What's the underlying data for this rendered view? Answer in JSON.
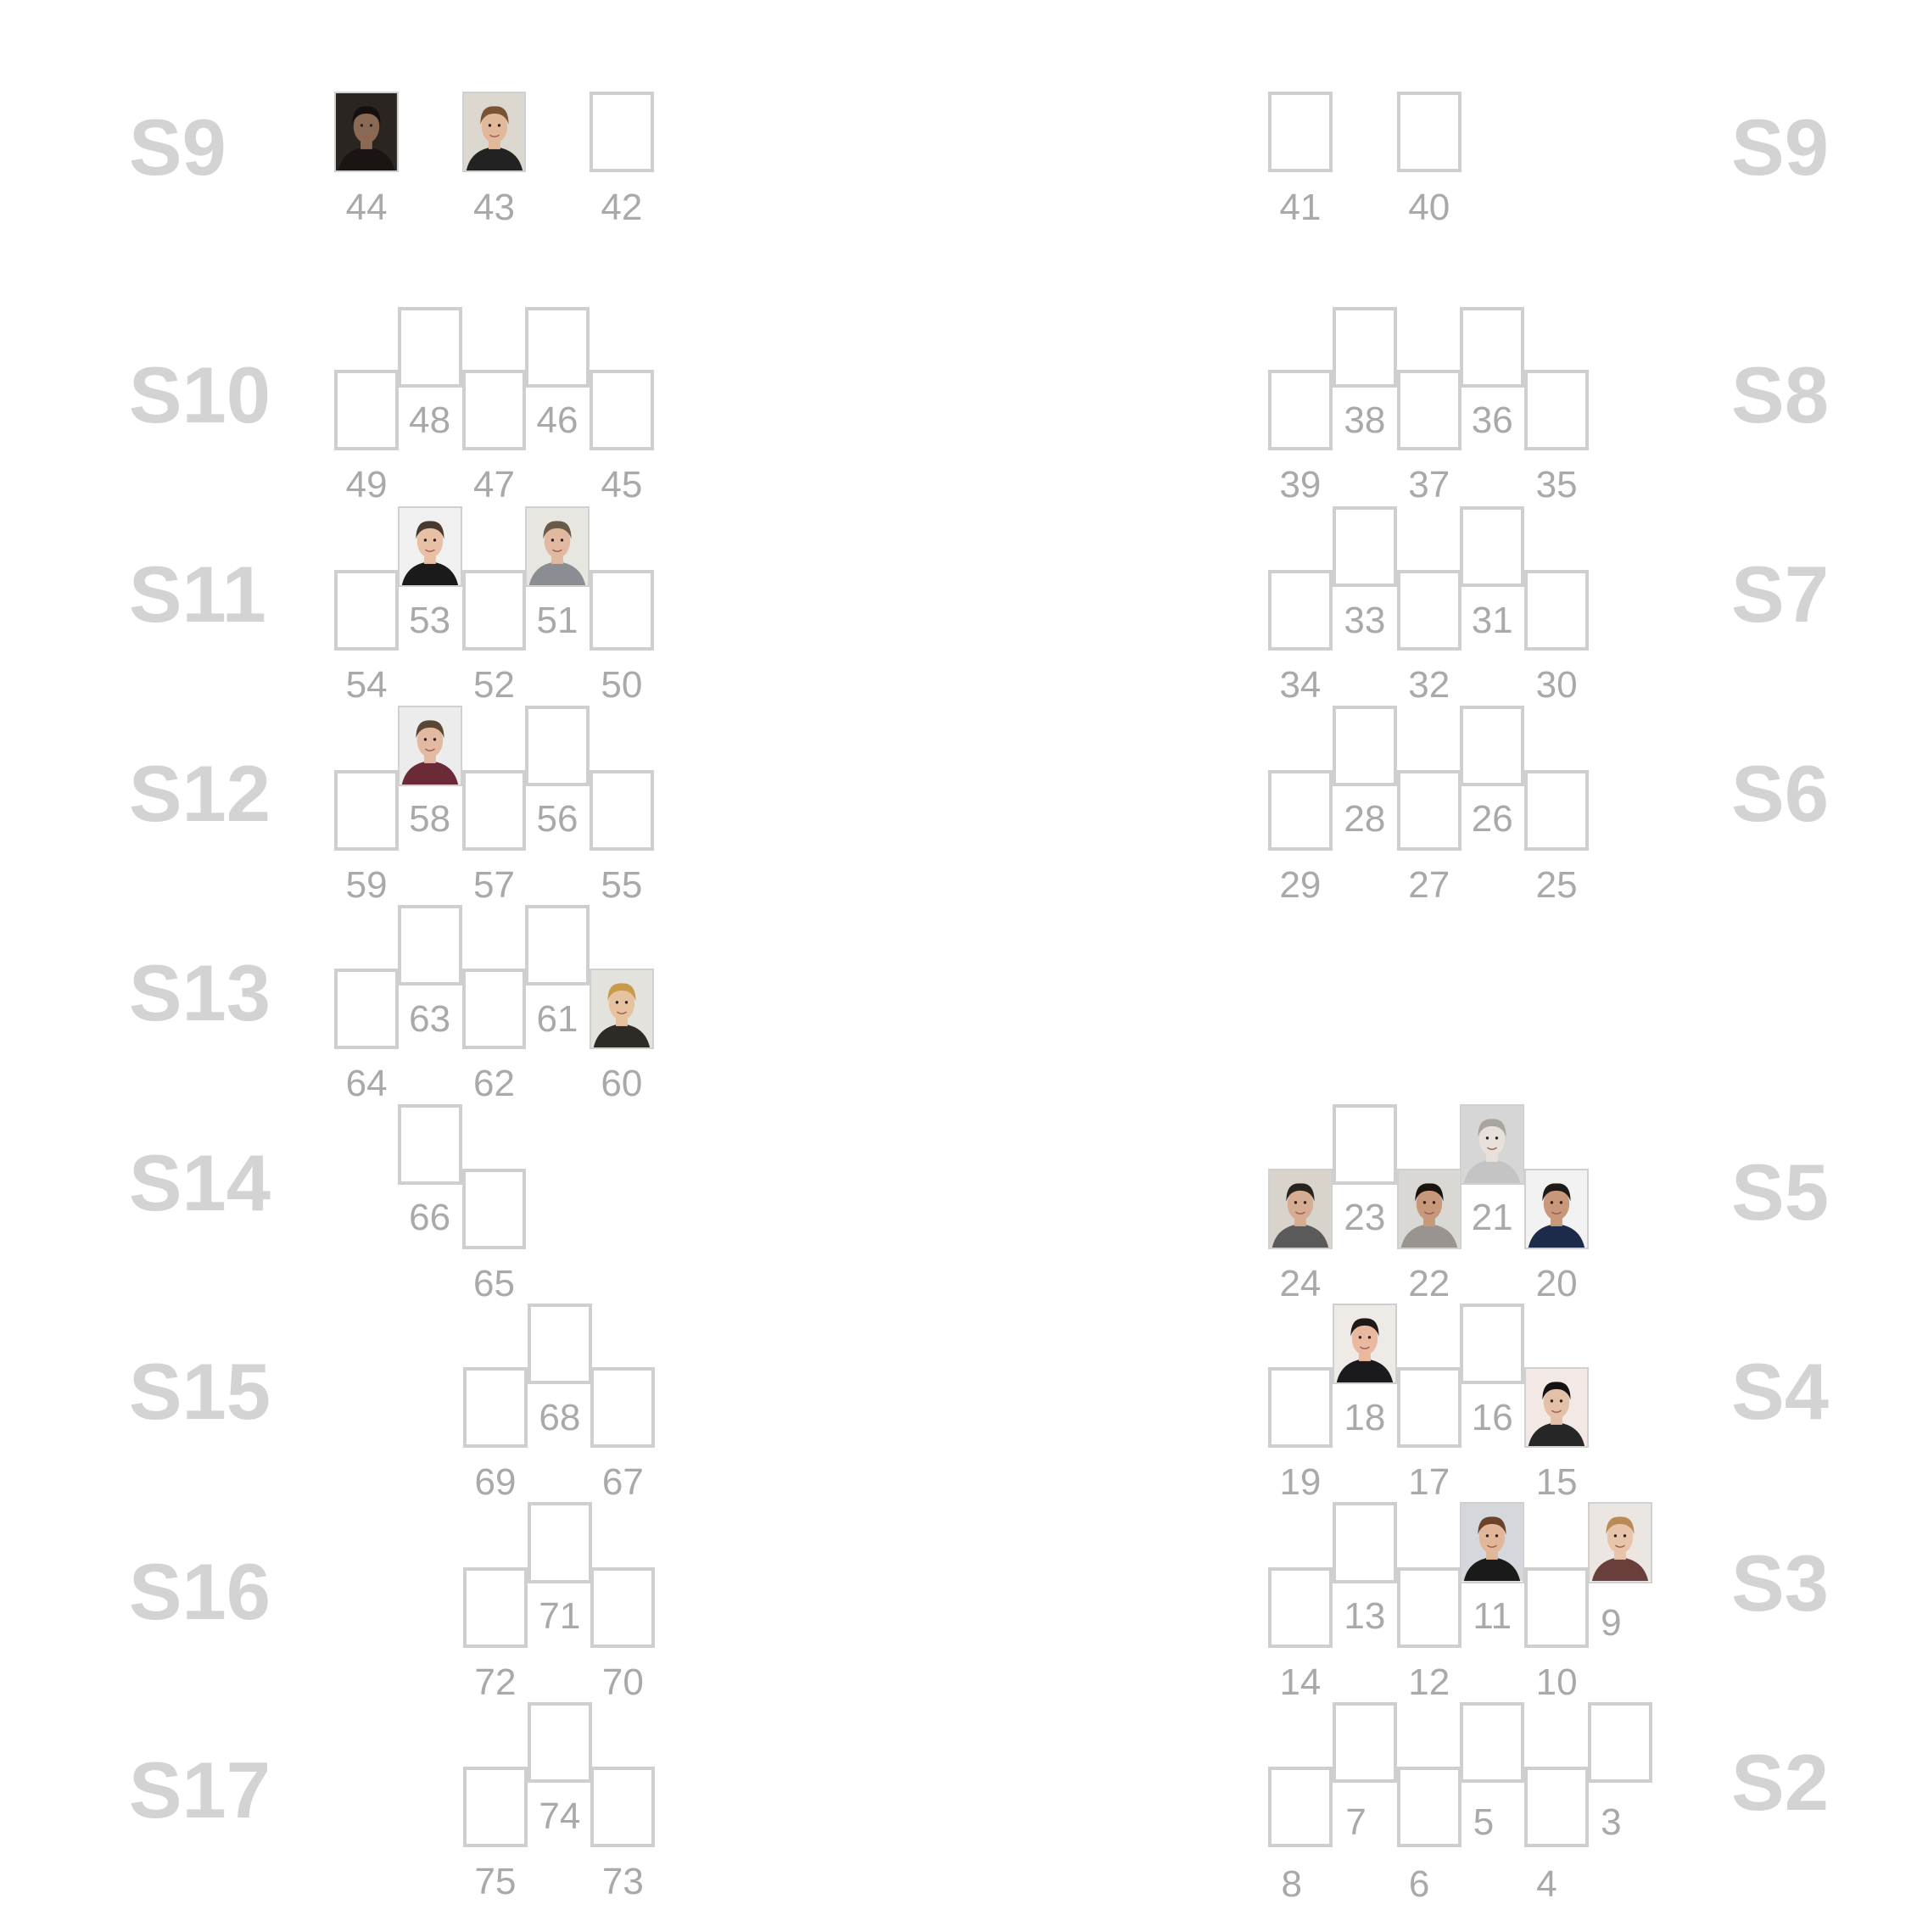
{
  "colors": {
    "label": "#d3d3d3",
    "seat_border": "#cfcfcf",
    "number": "#a9a9a9",
    "background": "#ffffff"
  },
  "rows": [
    {
      "label": "S9",
      "sides": [
        "left",
        "right"
      ]
    },
    {
      "label": "S10"
    },
    {
      "label": "S11"
    },
    {
      "label": "S12"
    },
    {
      "label": "S13"
    },
    {
      "label": "S14"
    },
    {
      "label": "S15"
    },
    {
      "label": "S16"
    },
    {
      "label": "S17"
    },
    {
      "label": "S8"
    },
    {
      "label": "S7"
    },
    {
      "label": "S6"
    },
    {
      "label": "S5"
    },
    {
      "label": "S4"
    },
    {
      "label": "S3"
    },
    {
      "label": "S2"
    }
  ],
  "seats": [
    {
      "no": "44",
      "occupied": true,
      "photo": "dark-portrait"
    },
    {
      "no": "43",
      "occupied": true,
      "photo": "smiling-man"
    },
    {
      "no": "42",
      "occupied": false
    },
    {
      "no": "41",
      "occupied": false
    },
    {
      "no": "40",
      "occupied": false
    },
    {
      "no": "49"
    },
    {
      "no": "48"
    },
    {
      "no": "47"
    },
    {
      "no": "46"
    },
    {
      "no": "45"
    },
    {
      "no": "39"
    },
    {
      "no": "38"
    },
    {
      "no": "37"
    },
    {
      "no": "36"
    },
    {
      "no": "35"
    },
    {
      "no": "54"
    },
    {
      "no": "53",
      "occupied": true,
      "photo": "young-man"
    },
    {
      "no": "52"
    },
    {
      "no": "51",
      "occupied": true,
      "photo": "man-grey-shirt"
    },
    {
      "no": "50"
    },
    {
      "no": "34"
    },
    {
      "no": "33"
    },
    {
      "no": "32"
    },
    {
      "no": "31"
    },
    {
      "no": "30"
    },
    {
      "no": "59"
    },
    {
      "no": "58",
      "occupied": true,
      "photo": "man-maroon-shirt"
    },
    {
      "no": "57"
    },
    {
      "no": "56"
    },
    {
      "no": "55"
    },
    {
      "no": "29"
    },
    {
      "no": "28"
    },
    {
      "no": "27"
    },
    {
      "no": "26"
    },
    {
      "no": "25"
    },
    {
      "no": "64"
    },
    {
      "no": "63"
    },
    {
      "no": "62"
    },
    {
      "no": "61"
    },
    {
      "no": "60",
      "occupied": true,
      "photo": "woman-scarf"
    },
    {
      "no": "66"
    },
    {
      "no": "65"
    },
    {
      "no": "24",
      "occupied": true,
      "photo": "bearded-man"
    },
    {
      "no": "23"
    },
    {
      "no": "22",
      "occupied": true,
      "photo": "dark-hair-man"
    },
    {
      "no": "21",
      "occupied": true,
      "photo": "faded-man"
    },
    {
      "no": "20",
      "occupied": true,
      "photo": "man-suit"
    },
    {
      "no": "69"
    },
    {
      "no": "68"
    },
    {
      "no": "67"
    },
    {
      "no": "19"
    },
    {
      "no": "18",
      "occupied": true,
      "photo": "man-dark-jacket"
    },
    {
      "no": "17"
    },
    {
      "no": "16"
    },
    {
      "no": "15",
      "occupied": true,
      "photo": "woman-long-hair"
    },
    {
      "no": "72"
    },
    {
      "no": "71"
    },
    {
      "no": "70"
    },
    {
      "no": "14"
    },
    {
      "no": "13"
    },
    {
      "no": "12"
    },
    {
      "no": "11",
      "occupied": true,
      "photo": "smiling-man-2"
    },
    {
      "no": "10"
    },
    {
      "no": "9",
      "occupied": true,
      "photo": "woman-blonde"
    },
    {
      "no": "75"
    },
    {
      "no": "74"
    },
    {
      "no": "73"
    },
    {
      "no": "8"
    },
    {
      "no": "7"
    },
    {
      "no": "6"
    },
    {
      "no": "5"
    },
    {
      "no": "4"
    },
    {
      "no": "3"
    }
  ]
}
